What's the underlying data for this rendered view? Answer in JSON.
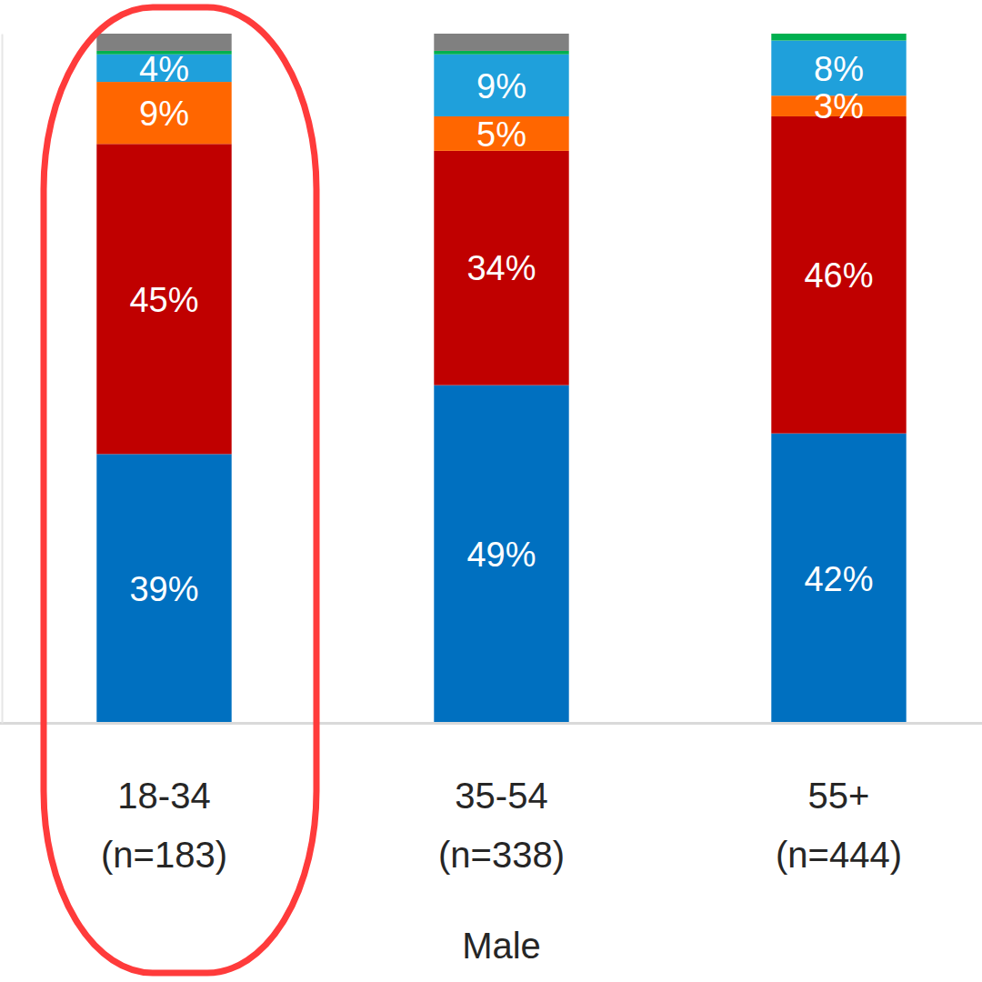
{
  "chart_data": {
    "type": "bar",
    "stacked": true,
    "data_labels": true,
    "grid": false,
    "tick_labels": "x",
    "xlabel": "Male",
    "categories": [
      "18-34 (n=183)",
      "35-54 (n=338)",
      "55+ (n=444)"
    ],
    "ylim": [
      0,
      100
    ],
    "series": [
      {
        "color": "#0070C0",
        "values": [
          39,
          49,
          42
        ],
        "value_labels": [
          "39%",
          "49%",
          "42%"
        ]
      },
      {
        "color": "#C00000",
        "values": [
          45,
          34,
          46
        ],
        "value_labels": [
          "45%",
          "34%",
          "46%"
        ]
      },
      {
        "color": "#FF6600",
        "values": [
          9,
          5,
          3
        ],
        "value_labels": [
          "9%",
          "5%",
          "3%"
        ]
      },
      {
        "color": "#1FA0DB",
        "values": [
          4,
          9,
          8
        ],
        "value_labels": [
          "4%",
          "9%",
          "8%"
        ]
      },
      {
        "color": "#00B050",
        "values": [
          0.5,
          0.5,
          1
        ]
      },
      {
        "color": "#808080",
        "values": [
          2.5,
          2.5,
          0
        ]
      }
    ]
  }
}
